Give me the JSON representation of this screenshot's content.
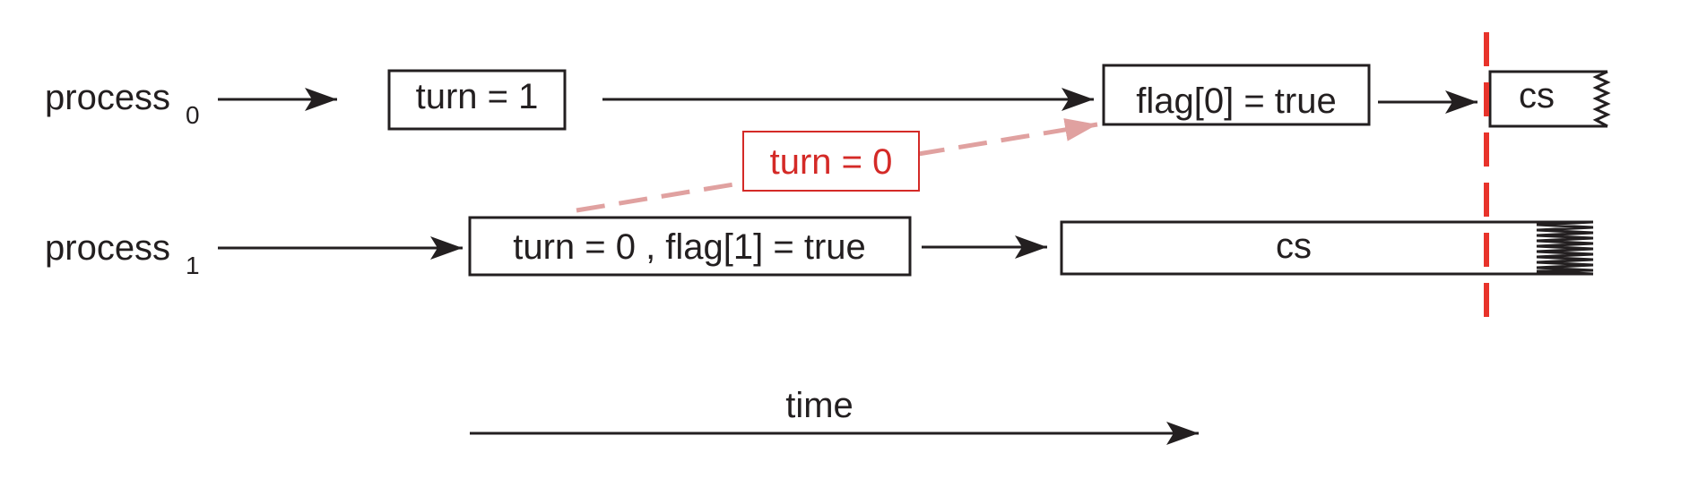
{
  "process0": {
    "label": "process",
    "subscript": "0"
  },
  "process1": {
    "label": "process",
    "subscript": "1"
  },
  "p0_step1": "turn = 1",
  "p0_step2": "flag[0] = true",
  "p0_cs": "cs",
  "p1_step1": "turn = 0 , flag[1] = true",
  "p1_cs": "cs",
  "interleave_label": "turn = 0",
  "time_label": "time",
  "colors": {
    "ink": "#231f20",
    "red": "#d42a27",
    "dashed_arrow": "#e0a1a0",
    "preempt_line": "#e8332b"
  }
}
